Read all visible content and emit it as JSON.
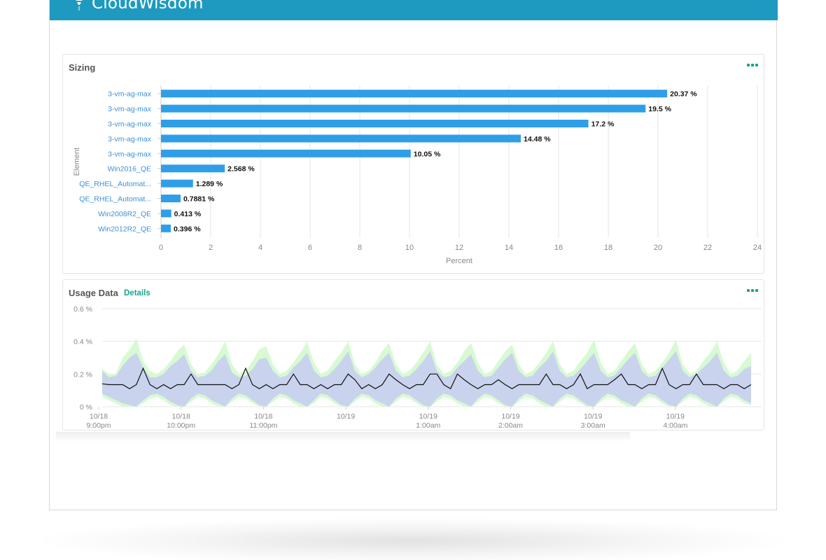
{
  "app": {
    "brand": "CloudWisdom",
    "logo_icon": "funnel-logo-icon",
    "header_color": "#1e9ac1"
  },
  "sizing_panel": {
    "title": "Sizing",
    "menu_icon": "more-dots-icon",
    "accent_color": "#17a589"
  },
  "usage_panel": {
    "title": "Usage Data",
    "details_label": "Details",
    "menu_icon": "more-dots-icon"
  },
  "chart_data": [
    {
      "type": "bar",
      "orientation": "horizontal",
      "categories": [
        "3-vm-ag-max",
        "3-vm-ag-max",
        "3-vm-ag-max",
        "3-vm-ag-max",
        "3-vm-ag-max",
        "Win2016_QE",
        "QE_RHEL_Automat...",
        "QE_RHEL_Automat...",
        "Win2008R2_QE",
        "Win2012R2_QE"
      ],
      "values": [
        20.37,
        19.5,
        17.2,
        14.48,
        10.05,
        2.568,
        1.289,
        0.7881,
        0.413,
        0.396
      ],
      "data_labels": [
        "20.37 %",
        "19.5 %",
        "17.2 %",
        "14.48 %",
        "10.05 %",
        "2.568 %",
        "1.289 %",
        "0.7881 %",
        "0.413 %",
        "0.396 %"
      ],
      "xlabel": "Percent",
      "ylabel": "Element",
      "xlim": [
        0,
        24
      ],
      "xticks": [
        "0",
        "2",
        "4",
        "6",
        "8",
        "10",
        "12",
        "14",
        "16",
        "18",
        "20",
        "22",
        "24"
      ],
      "grid": "vertical",
      "bar_color": "#2f9ee8"
    },
    {
      "type": "area",
      "ylim": [
        0,
        0.6
      ],
      "yticks": [
        "0 %",
        "0.2 %",
        "0.4 %",
        "0.6 %"
      ],
      "xticks": [
        {
          "date": "10/18",
          "time": "9:00pm"
        },
        {
          "date": "10/18",
          "time": "10:00pm"
        },
        {
          "date": "10/18",
          "time": "11:00pm"
        },
        {
          "date": "10/19",
          "time": ""
        },
        {
          "date": "10/19",
          "time": "1:00am"
        },
        {
          "date": "10/19",
          "time": "2:00am"
        },
        {
          "date": "10/19",
          "time": "3:00am"
        },
        {
          "date": "10/19",
          "time": "4:00am"
        }
      ],
      "x_range_hours": [
        0,
        7.96
      ],
      "sample_interval_hours": 0.0833,
      "max_band": [
        0.23,
        0.2,
        0.2,
        0.3,
        0.35,
        0.42,
        0.28,
        0.22,
        0.2,
        0.23,
        0.28,
        0.34,
        0.38,
        0.26,
        0.2,
        0.21,
        0.26,
        0.32,
        0.4,
        0.26,
        0.2,
        0.22,
        0.28,
        0.35,
        0.37,
        0.26,
        0.2,
        0.22,
        0.27,
        0.33,
        0.4,
        0.27,
        0.2,
        0.22,
        0.28,
        0.33,
        0.4,
        0.26,
        0.2,
        0.22,
        0.27,
        0.34,
        0.39,
        0.26,
        0.2,
        0.22,
        0.27,
        0.33,
        0.4,
        0.26,
        0.2,
        0.22,
        0.27,
        0.34,
        0.39,
        0.27,
        0.2,
        0.22,
        0.28,
        0.34,
        0.38,
        0.26,
        0.2,
        0.22,
        0.27,
        0.33,
        0.4,
        0.26,
        0.2,
        0.22,
        0.28,
        0.33,
        0.41,
        0.27,
        0.2,
        0.22,
        0.28,
        0.34,
        0.39,
        0.26,
        0.2,
        0.22,
        0.27,
        0.33,
        0.41,
        0.26,
        0.2,
        0.22,
        0.28,
        0.33,
        0.4,
        0.27,
        0.2,
        0.22,
        0.28,
        0.33
      ],
      "upper_band": [
        0.22,
        0.18,
        0.19,
        0.25,
        0.3,
        0.33,
        0.24,
        0.18,
        0.18,
        0.2,
        0.25,
        0.28,
        0.32,
        0.22,
        0.18,
        0.19,
        0.22,
        0.28,
        0.32,
        0.21,
        0.18,
        0.19,
        0.23,
        0.29,
        0.3,
        0.22,
        0.18,
        0.19,
        0.24,
        0.28,
        0.33,
        0.22,
        0.18,
        0.19,
        0.23,
        0.28,
        0.34,
        0.22,
        0.18,
        0.2,
        0.24,
        0.29,
        0.33,
        0.22,
        0.18,
        0.19,
        0.23,
        0.28,
        0.34,
        0.22,
        0.18,
        0.19,
        0.24,
        0.28,
        0.32,
        0.22,
        0.18,
        0.19,
        0.24,
        0.29,
        0.33,
        0.22,
        0.18,
        0.19,
        0.24,
        0.28,
        0.34,
        0.22,
        0.18,
        0.19,
        0.23,
        0.28,
        0.33,
        0.22,
        0.18,
        0.19,
        0.24,
        0.29,
        0.33,
        0.22,
        0.18,
        0.19,
        0.24,
        0.29,
        0.34,
        0.22,
        0.18,
        0.2,
        0.24,
        0.28,
        0.33,
        0.22,
        0.18,
        0.19,
        0.23,
        0.25
      ],
      "lower_band": [
        0.08,
        0.06,
        0.04,
        0.02,
        0.01,
        0,
        0.04,
        0.07,
        0.08,
        0.06,
        0.03,
        0.01,
        0,
        0.05,
        0.08,
        0.07,
        0.04,
        0.02,
        0,
        0.05,
        0.08,
        0.07,
        0.04,
        0.01,
        0,
        0.05,
        0.08,
        0.07,
        0.04,
        0.02,
        0,
        0.04,
        0.08,
        0.07,
        0.04,
        0.01,
        0,
        0.05,
        0.08,
        0.07,
        0.04,
        0.02,
        0,
        0.05,
        0.08,
        0.07,
        0.04,
        0.01,
        0,
        0.05,
        0.08,
        0.07,
        0.04,
        0.02,
        0,
        0.05,
        0.08,
        0.07,
        0.04,
        0.01,
        0,
        0.05,
        0.08,
        0.07,
        0.04,
        0.02,
        0,
        0.05,
        0.08,
        0.07,
        0.04,
        0.01,
        0,
        0.05,
        0.08,
        0.07,
        0.04,
        0.02,
        0,
        0.05,
        0.08,
        0.07,
        0.04,
        0.01,
        0,
        0.05,
        0.08,
        0.07,
        0.04,
        0.02,
        0,
        0.05,
        0.08,
        0.07,
        0.04,
        0.02
      ],
      "min_band": [
        0.06,
        0.04,
        0.02,
        0,
        0,
        0,
        0.02,
        0.05,
        0.06,
        0.04,
        0.01,
        0,
        0,
        0.03,
        0.06,
        0.05,
        0.02,
        0,
        0,
        0.03,
        0.06,
        0.05,
        0.02,
        0,
        0,
        0.03,
        0.06,
        0.05,
        0.02,
        0,
        0,
        0.02,
        0.06,
        0.05,
        0.02,
        0,
        0,
        0.03,
        0.06,
        0.05,
        0.02,
        0,
        0,
        0.03,
        0.06,
        0.05,
        0.02,
        0,
        0,
        0.03,
        0.06,
        0.05,
        0.02,
        0,
        0,
        0.03,
        0.06,
        0.05,
        0.02,
        0,
        0,
        0.03,
        0.06,
        0.05,
        0.02,
        0,
        0,
        0.03,
        0.06,
        0.05,
        0.02,
        0,
        0,
        0.03,
        0.06,
        0.05,
        0.02,
        0,
        0,
        0.03,
        0.06,
        0.05,
        0.02,
        0,
        0,
        0.03,
        0.06,
        0.05,
        0.02,
        0,
        0,
        0.03,
        0.06,
        0.05,
        0.02,
        0.01
      ],
      "average": [
        0.14,
        0.135,
        0.135,
        0.135,
        0.11,
        0.135,
        0.235,
        0.135,
        0.11,
        0.135,
        0.11,
        0.135,
        0.135,
        0.2,
        0.135,
        0.135,
        0.135,
        0.135,
        0.135,
        0.11,
        0.135,
        0.235,
        0.135,
        0.11,
        0.135,
        0.11,
        0.135,
        0.135,
        0.2,
        0.135,
        0.135,
        0.11,
        0.135,
        0.11,
        0.135,
        0.135,
        0.2,
        0.165,
        0.11,
        0.135,
        0.11,
        0.135,
        0.2,
        0.165,
        0.135,
        0.11,
        0.135,
        0.135,
        0.2,
        0.2,
        0.135,
        0.11,
        0.2,
        0.165,
        0.135,
        0.11,
        0.135,
        0.135,
        0.165,
        0.135,
        0.11,
        0.135,
        0.135,
        0.135,
        0.135,
        0.2,
        0.135,
        0.135,
        0.11,
        0.135,
        0.2,
        0.11,
        0.135,
        0.135,
        0.135,
        0.165,
        0.2,
        0.135,
        0.135,
        0.11,
        0.135,
        0.135,
        0.235,
        0.135,
        0.11,
        0.135,
        0.135,
        0.2,
        0.135,
        0.135,
        0.135,
        0.11,
        0.135,
        0.135,
        0.11,
        0.135
      ],
      "colors": {
        "minmax": "#d7fad2",
        "stddev": "#c9d3ee",
        "average": "#111111"
      }
    }
  ]
}
